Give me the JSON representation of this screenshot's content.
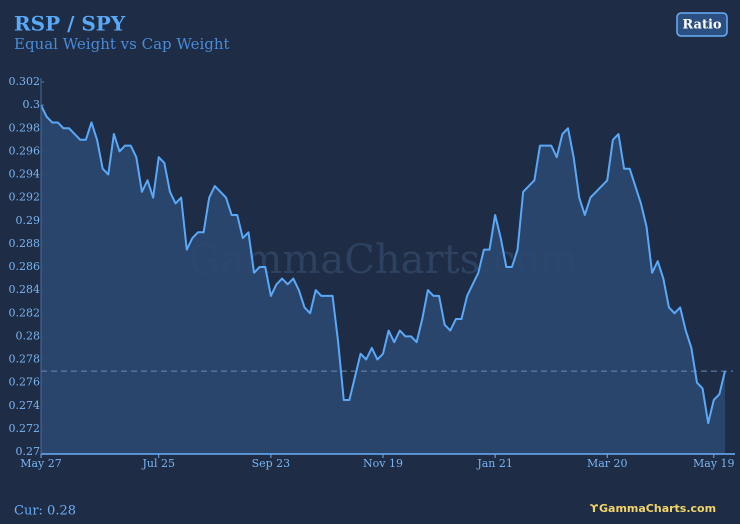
{
  "chart_data": {
    "type": "area-line",
    "title": "RSP / SPY",
    "subtitle": "Equal Weight vs Cap Weight",
    "button": "Ratio",
    "current_label": "Cur: 0.28",
    "watermark": "GammaCharts.com",
    "logo": "GammaCharts.com",
    "color": "#5aa8f8",
    "reference_line": 0.277,
    "ylim": [
      0.27,
      0.302
    ],
    "yticks": [
      0.27,
      0.272,
      0.274,
      0.276,
      0.278,
      0.28,
      0.282,
      0.284,
      0.286,
      0.288,
      0.29,
      0.292,
      0.294,
      0.296,
      0.298,
      0.3,
      0.302
    ],
    "categories": [
      "May 27",
      null,
      null,
      null,
      null,
      null,
      null,
      null,
      null,
      null,
      null,
      null,
      null,
      null,
      null,
      null,
      null,
      null,
      null,
      null,
      null,
      "Jul 25",
      null,
      null,
      null,
      null,
      null,
      null,
      null,
      null,
      null,
      null,
      null,
      null,
      null,
      null,
      null,
      null,
      null,
      null,
      null,
      "Sep 23",
      null,
      null,
      null,
      null,
      null,
      null,
      null,
      null,
      null,
      null,
      null,
      null,
      null,
      null,
      null,
      null,
      null,
      null,
      null,
      "Nov 19",
      null,
      null,
      null,
      null,
      null,
      null,
      null,
      null,
      null,
      null,
      null,
      null,
      null,
      null,
      null,
      null,
      null,
      null,
      null,
      "Jan 21",
      null,
      null,
      null,
      null,
      null,
      null,
      null,
      null,
      null,
      null,
      null,
      null,
      null,
      null,
      null,
      null,
      null,
      null,
      null,
      "Mar 20",
      null,
      null,
      null,
      null,
      null,
      null,
      null,
      null,
      null,
      null,
      null,
      null,
      null,
      null,
      null,
      null,
      null,
      null,
      "May 19",
      null,
      null
    ],
    "values": [
      0.3,
      0.299,
      0.2985,
      0.2985,
      0.298,
      0.298,
      0.2975,
      0.297,
      0.297,
      0.2985,
      0.297,
      0.2945,
      0.294,
      0.2975,
      0.296,
      0.2965,
      0.2965,
      0.2955,
      0.2925,
      0.2935,
      0.292,
      0.2955,
      0.295,
      0.2925,
      0.2915,
      0.292,
      0.2875,
      0.2885,
      0.289,
      0.289,
      0.292,
      0.293,
      0.2925,
      0.292,
      0.2905,
      0.2905,
      0.2885,
      0.289,
      0.2855,
      0.286,
      0.286,
      0.2835,
      0.2845,
      0.285,
      0.2845,
      0.285,
      0.284,
      0.2825,
      0.282,
      0.284,
      0.2835,
      0.2835,
      0.2835,
      0.2795,
      0.2745,
      0.2745,
      0.2765,
      0.2785,
      0.278,
      0.279,
      0.278,
      0.2785,
      0.2805,
      0.2795,
      0.2805,
      0.28,
      0.28,
      0.2795,
      0.2815,
      0.284,
      0.2835,
      0.2835,
      0.281,
      0.2805,
      0.2815,
      0.2815,
      0.2835,
      0.2845,
      0.2855,
      0.2875,
      0.2875,
      0.2905,
      0.2885,
      0.286,
      0.286,
      0.2875,
      0.2925,
      0.293,
      0.2935,
      0.2965,
      0.2965,
      0.2965,
      0.2955,
      0.2975,
      0.298,
      0.2955,
      0.292,
      0.2905,
      0.292,
      0.2925,
      0.293,
      0.2935,
      0.297,
      0.2975,
      0.2945,
      0.2945,
      0.293,
      0.2915,
      0.2895,
      0.2855,
      0.2865,
      0.285,
      0.2825,
      0.282,
      0.2825,
      0.2805,
      0.279,
      0.276,
      0.2755,
      0.2725,
      0.2745,
      0.275,
      0.277
    ]
  }
}
